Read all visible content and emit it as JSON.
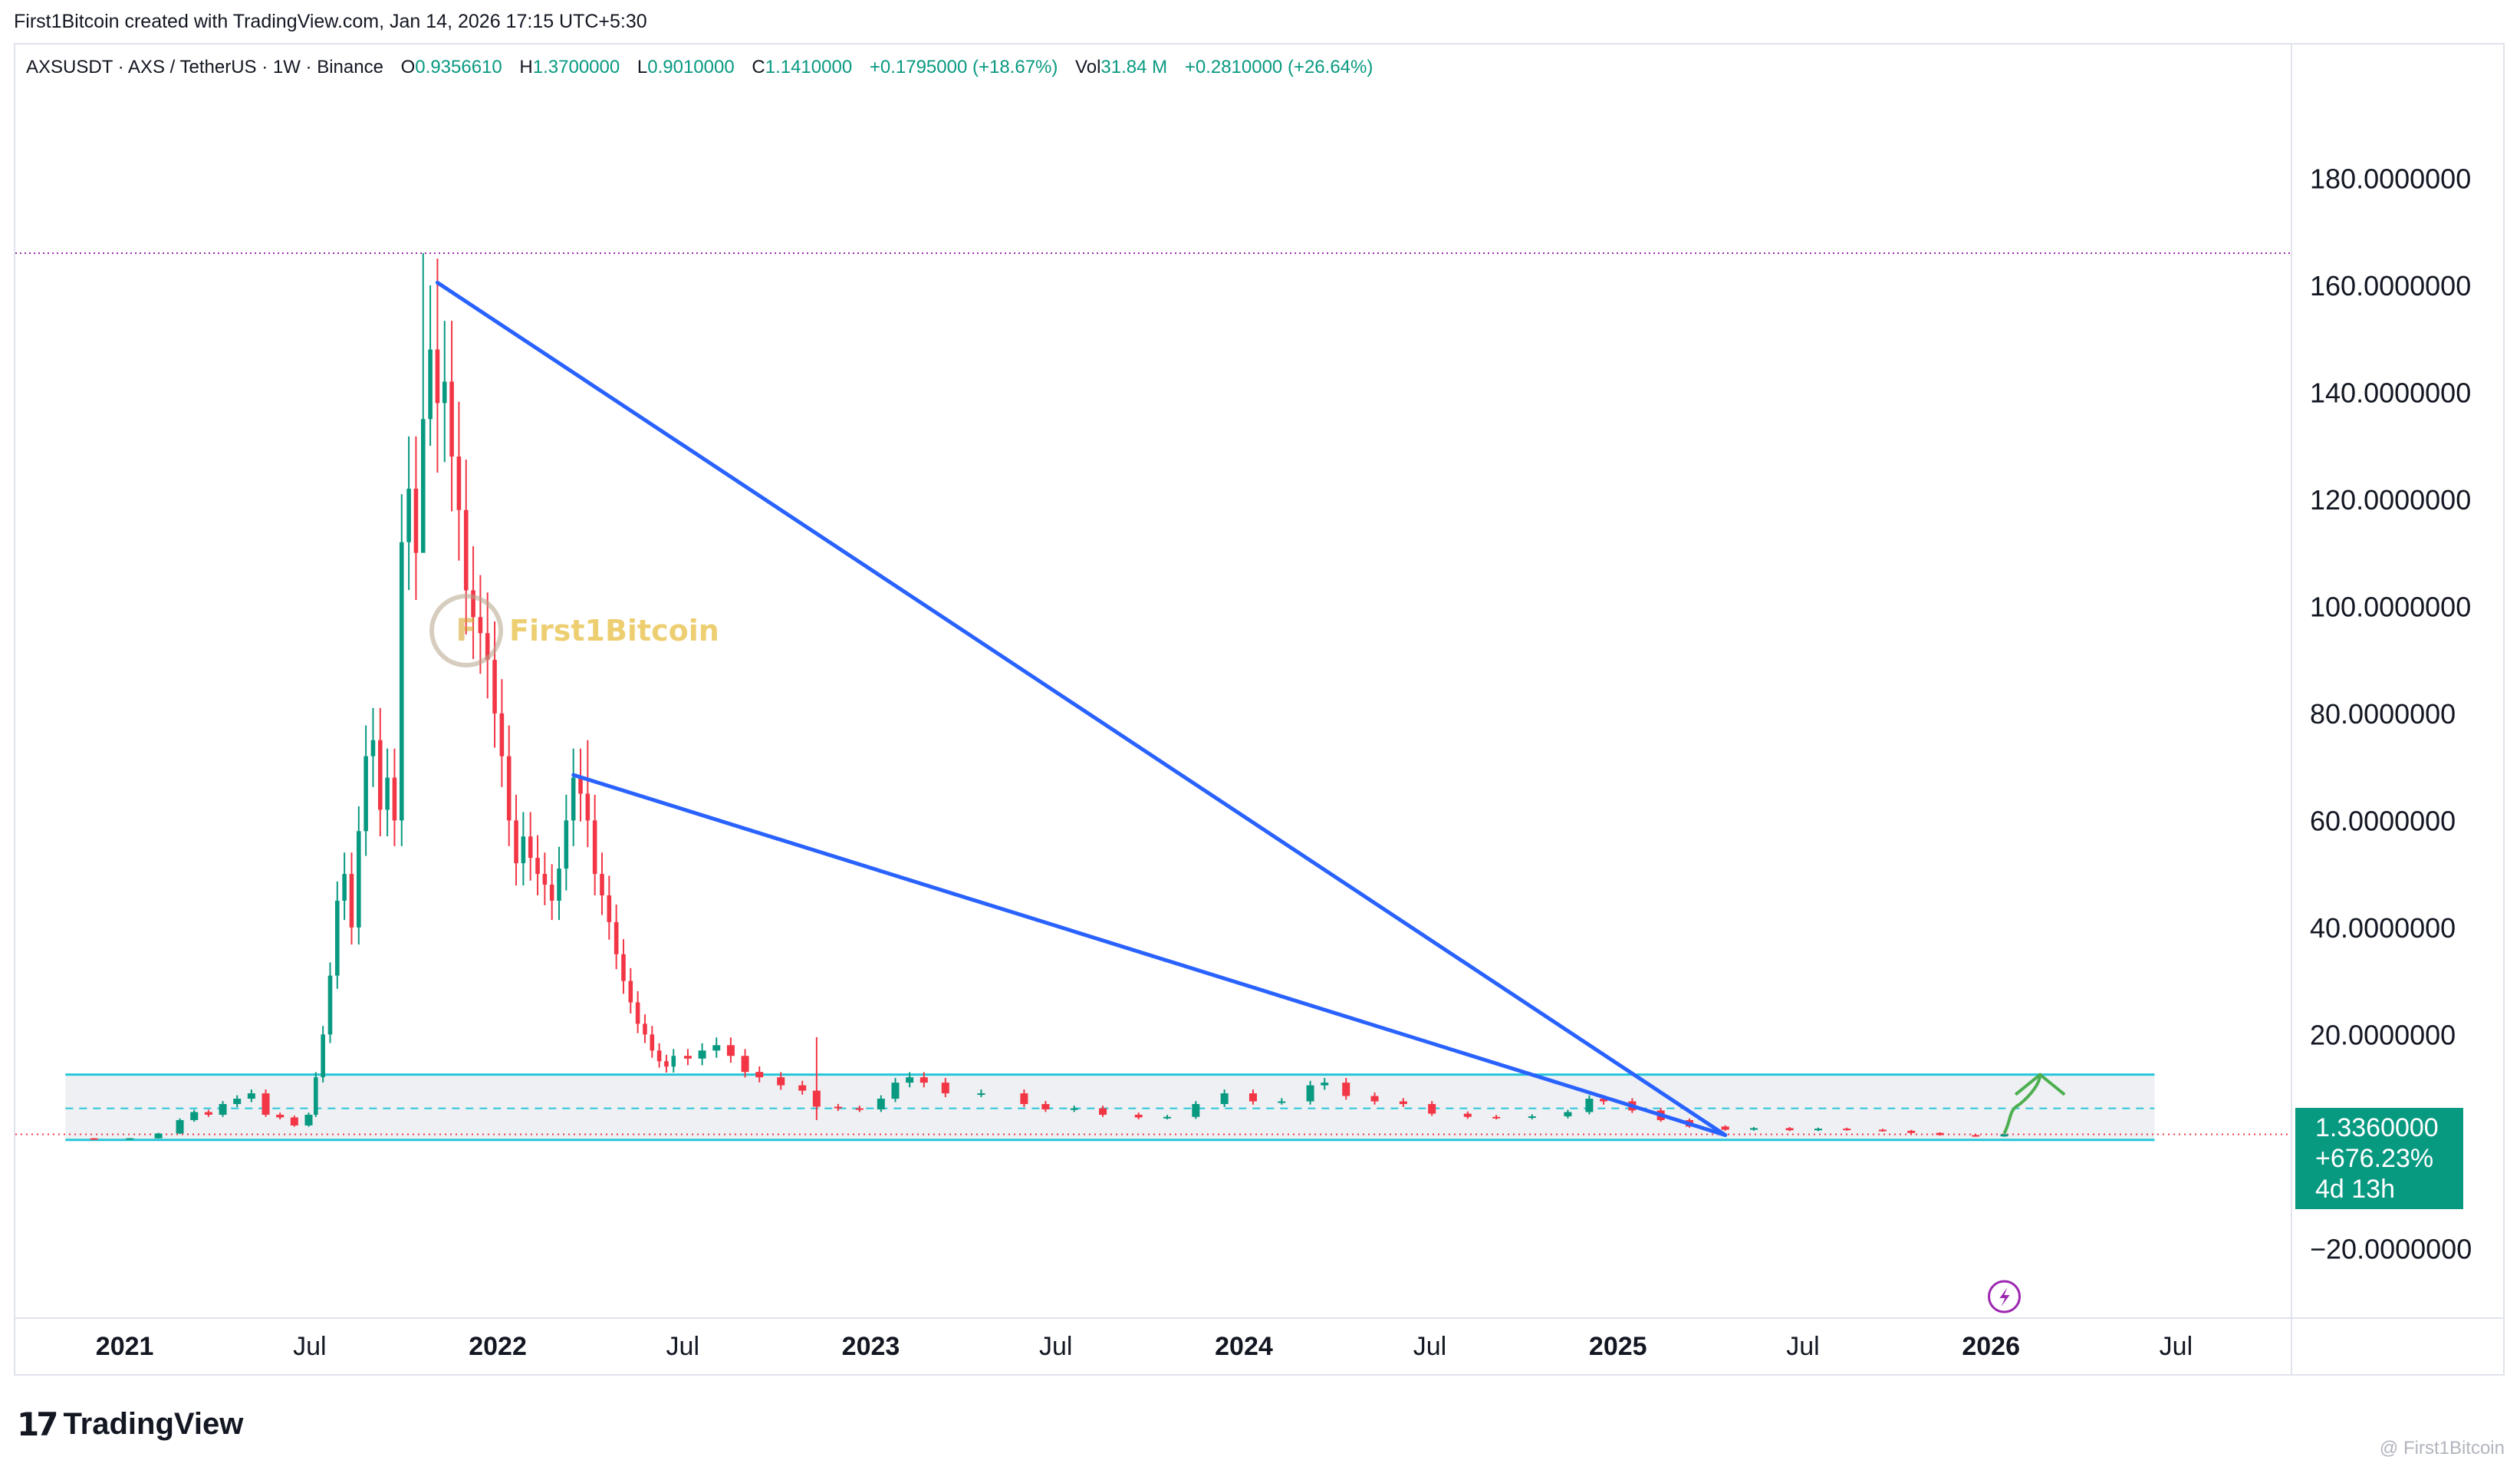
{
  "header": {
    "credit": "First1Bitcoin created with TradingView.com, Jan 14, 2026 17:15 UTC+5:30",
    "symbol": "AXSUSDT · AXS / TetherUS · 1W · Binance",
    "open_label": "O",
    "open_value": "0.9356610",
    "high_label": "H",
    "high_value": "1.3700000",
    "low_label": "L",
    "low_value": "0.9010000",
    "close_label": "C",
    "close_value": "1.1410000",
    "change": "+0.1795000 (+18.67%)",
    "vol_label": "Vol",
    "vol_value": "31.84 M",
    "vol_change": "+0.2810000 (+26.64%)"
  },
  "watermark": {
    "text": "First1Bitcoin",
    "monogram": "F"
  },
  "price_badge": {
    "price": "1.3360000",
    "change_pct": "+676.23%",
    "countdown": "4d 13h"
  },
  "footer": {
    "brand": "TradingView",
    "brand_mark": "17",
    "credit": "@ First1Bitcoin"
  },
  "colors": {
    "up": "#089981",
    "down": "#f23645",
    "trendline": "#2962ff",
    "range_box": "#26c6da",
    "box_fill": "#eef0f3",
    "resistance": "#9c27b0",
    "arrow": "#4caf50",
    "grid_text": "#131722"
  },
  "chart_data": {
    "type": "candlestick",
    "symbol": "AXSUSDT",
    "timeframe": "1W",
    "exchange": "Binance",
    "y_ticks": [
      180,
      160,
      140,
      120,
      100,
      80,
      60,
      40,
      20,
      0,
      -20
    ],
    "y_tick_labels": [
      "180.0000000",
      "160.0000000",
      "140.0000000",
      "120.0000000",
      "100.0000000",
      "80.0000000",
      "60.0000000",
      "40.0000000",
      "20.0000000",
      "",
      "−20.0000000"
    ],
    "ylim": [
      -33,
      205
    ],
    "x_ticks": [
      {
        "label": "2021",
        "date": "2021-01-01",
        "bold": true
      },
      {
        "label": "Jul",
        "date": "2021-07-01",
        "bold": false
      },
      {
        "label": "2022",
        "date": "2022-01-01",
        "bold": true
      },
      {
        "label": "Jul",
        "date": "2022-07-01",
        "bold": false
      },
      {
        "label": "2023",
        "date": "2023-01-01",
        "bold": true
      },
      {
        "label": "Jul",
        "date": "2023-07-01",
        "bold": false
      },
      {
        "label": "2024",
        "date": "2024-01-01",
        "bold": true
      },
      {
        "label": "Jul",
        "date": "2024-07-01",
        "bold": false
      },
      {
        "label": "2025",
        "date": "2025-01-01",
        "bold": true
      },
      {
        "label": "Jul",
        "date": "2025-07-01",
        "bold": false
      },
      {
        "label": "2026",
        "date": "2026-01-01",
        "bold": true
      },
      {
        "label": "Jul",
        "date": "2026-07-01",
        "bold": false
      }
    ],
    "xlim": [
      "2020-09-16",
      "2026-10-22"
    ],
    "current_price": 1.336,
    "resistance_level": 166.0,
    "range_box": {
      "top": 12.5,
      "mid": 6.2,
      "bottom": 0.3,
      "from": "2020-11-04",
      "to": "2026-06-10"
    },
    "trendlines": [
      {
        "from": [
          "2021-11-03",
          160.5
        ],
        "to": [
          "2025-04-16",
          1.2
        ]
      },
      {
        "from": [
          "2022-03-16",
          68.5
        ],
        "to": [
          "2025-04-16",
          1.2
        ]
      }
    ],
    "projection_arrow": {
      "from": [
        "2026-01-14",
        1.5
      ],
      "to": [
        "2026-02-18",
        12.5
      ]
    },
    "closes": [
      [
        "2020-11-04",
        0.6
      ],
      [
        "2020-12-02",
        0.55
      ],
      [
        "2021-01-06",
        0.6
      ],
      [
        "2021-02-03",
        1.5
      ],
      [
        "2021-02-24",
        4.0
      ],
      [
        "2021-03-10",
        5.5
      ],
      [
        "2021-03-24",
        5.0
      ],
      [
        "2021-04-07",
        7.0
      ],
      [
        "2021-04-21",
        8.0
      ],
      [
        "2021-05-05",
        9.0
      ],
      [
        "2021-05-19",
        5.0
      ],
      [
        "2021-06-02",
        4.5
      ],
      [
        "2021-06-16",
        3.0
      ],
      [
        "2021-06-30",
        5.0
      ],
      [
        "2021-07-07",
        12.0
      ],
      [
        "2021-07-14",
        20.0
      ],
      [
        "2021-07-21",
        31.0
      ],
      [
        "2021-07-28",
        45.0
      ],
      [
        "2021-08-04",
        50.0
      ],
      [
        "2021-08-11",
        40.0
      ],
      [
        "2021-08-18",
        58.0
      ],
      [
        "2021-08-25",
        72.0
      ],
      [
        "2021-09-01",
        75.0
      ],
      [
        "2021-09-08",
        62.0
      ],
      [
        "2021-09-15",
        68.0
      ],
      [
        "2021-09-22",
        60.0
      ],
      [
        "2021-09-29",
        112.0
      ],
      [
        "2021-10-06",
        122.0
      ],
      [
        "2021-10-13",
        110.0
      ],
      [
        "2021-10-20",
        135.0
      ],
      [
        "2021-10-27",
        148.0
      ],
      [
        "2021-11-03",
        138.0
      ],
      [
        "2021-11-10",
        142.0
      ],
      [
        "2021-11-17",
        128.0
      ],
      [
        "2021-11-24",
        118.0
      ],
      [
        "2021-12-01",
        103.0
      ],
      [
        "2021-12-08",
        98.0
      ],
      [
        "2021-12-15",
        95.0
      ],
      [
        "2021-12-22",
        90.0
      ],
      [
        "2021-12-29",
        80.0
      ],
      [
        "2022-01-05",
        72.0
      ],
      [
        "2022-01-12",
        60.0
      ],
      [
        "2022-01-19",
        52.0
      ],
      [
        "2022-01-26",
        57.0
      ],
      [
        "2022-02-02",
        53.0
      ],
      [
        "2022-02-09",
        50.0
      ],
      [
        "2022-02-16",
        48.0
      ],
      [
        "2022-02-23",
        45.0
      ],
      [
        "2022-03-02",
        51.0
      ],
      [
        "2022-03-09",
        60.0
      ],
      [
        "2022-03-16",
        68.0
      ],
      [
        "2022-03-23",
        65.0
      ],
      [
        "2022-03-30",
        60.0
      ],
      [
        "2022-04-06",
        50.0
      ],
      [
        "2022-04-13",
        46.0
      ],
      [
        "2022-04-20",
        41.0
      ],
      [
        "2022-04-27",
        35.0
      ],
      [
        "2022-05-04",
        30.0
      ],
      [
        "2022-05-11",
        26.0
      ],
      [
        "2022-05-18",
        22.0
      ],
      [
        "2022-05-25",
        20.0
      ],
      [
        "2022-06-01",
        17.0
      ],
      [
        "2022-06-08",
        15.0
      ],
      [
        "2022-06-15",
        14.0
      ],
      [
        "2022-06-22",
        16.0
      ],
      [
        "2022-07-06",
        15.5
      ],
      [
        "2022-07-20",
        17.0
      ],
      [
        "2022-08-03",
        18.0
      ],
      [
        "2022-08-17",
        16.0
      ],
      [
        "2022-08-31",
        13.0
      ],
      [
        "2022-09-14",
        12.0
      ],
      [
        "2022-10-05",
        10.5
      ],
      [
        "2022-10-26",
        9.5
      ],
      [
        "2022-11-09",
        6.5
      ],
      [
        "2022-11-30",
        6.2
      ],
      [
        "2022-12-21",
        6.0
      ],
      [
        "2023-01-11",
        8.0
      ],
      [
        "2023-01-25",
        11.0
      ],
      [
        "2023-02-08",
        12.0
      ],
      [
        "2023-02-22",
        11.0
      ],
      [
        "2023-03-15",
        9.0
      ],
      [
        "2023-04-19",
        9.0
      ],
      [
        "2023-05-31",
        7.0
      ],
      [
        "2023-06-21",
        6.0
      ],
      [
        "2023-07-19",
        6.2
      ],
      [
        "2023-08-16",
        5.0
      ],
      [
        "2023-09-20",
        4.5
      ],
      [
        "2023-10-18",
        4.6
      ],
      [
        "2023-11-15",
        7.0
      ],
      [
        "2023-12-13",
        9.0
      ],
      [
        "2024-01-10",
        7.5
      ],
      [
        "2024-02-07",
        7.5
      ],
      [
        "2024-03-06",
        10.5
      ],
      [
        "2024-03-20",
        11.0
      ],
      [
        "2024-04-10",
        8.5
      ],
      [
        "2024-05-08",
        7.5
      ],
      [
        "2024-06-05",
        7.0
      ],
      [
        "2024-07-03",
        5.2
      ],
      [
        "2024-08-07",
        4.6
      ],
      [
        "2024-09-04",
        4.5
      ],
      [
        "2024-10-09",
        4.7
      ],
      [
        "2024-11-13",
        5.5
      ],
      [
        "2024-12-04",
        8.0
      ],
      [
        "2024-12-18",
        7.5
      ],
      [
        "2025-01-15",
        5.8
      ],
      [
        "2025-02-12",
        4.0
      ],
      [
        "2025-03-12",
        2.8
      ],
      [
        "2025-04-16",
        2.2
      ],
      [
        "2025-05-14",
        2.5
      ],
      [
        "2025-06-18",
        2.1
      ],
      [
        "2025-07-16",
        2.4
      ],
      [
        "2025-08-13",
        2.2
      ],
      [
        "2025-09-17",
        2.0
      ],
      [
        "2025-10-15",
        1.6
      ],
      [
        "2025-11-12",
        1.2
      ],
      [
        "2025-12-17",
        0.95
      ],
      [
        "2026-01-14",
        1.34
      ]
    ],
    "spikes": [
      {
        "date": "2021-10-20",
        "high": 166.0,
        "low": 120.0
      },
      {
        "date": "2021-10-27",
        "high": 160.0,
        "low": 130.0
      },
      {
        "date": "2021-11-03",
        "high": 165.0,
        "low": 125.0
      },
      {
        "date": "2022-03-30",
        "high": 75.0,
        "low": 55.0
      },
      {
        "date": "2022-11-09",
        "high": 19.5,
        "low": 4.0
      }
    ]
  }
}
